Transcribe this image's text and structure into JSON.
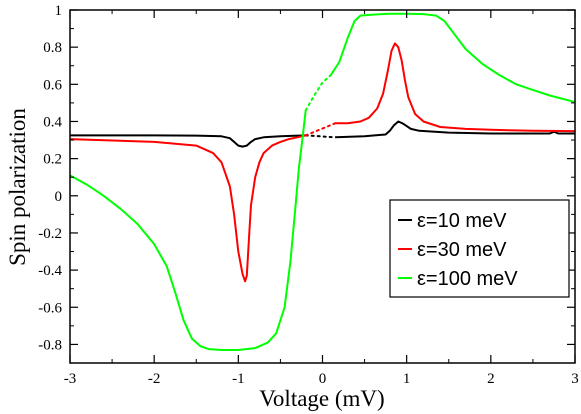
{
  "chart_data": {
    "type": "line",
    "title": "",
    "xlabel": "Voltage (mV)",
    "ylabel": "Spin polarization",
    "xlim": [
      -3,
      3
    ],
    "ylim": [
      -0.9,
      1.0
    ],
    "x_ticks": [
      "-3",
      "-2",
      "-1",
      "0",
      "1",
      "2",
      "3"
    ],
    "y_ticks": [
      "1",
      "0.8",
      "0.6",
      "0.4",
      "0.2",
      "0",
      "-0.2",
      "-0.4",
      "-0.6",
      "-0.8"
    ],
    "grid": false,
    "legend_position": "bottom-right",
    "series": [
      {
        "name": "ε=10 meV",
        "color": "#000000",
        "x": [
          -3,
          -2,
          -1.5,
          -1.2,
          -1.1,
          -1.05,
          -1.0,
          -0.95,
          -0.9,
          -0.85,
          -0.8,
          -0.7,
          -0.5,
          -0.2
        ],
        "y": [
          0.325,
          0.325,
          0.324,
          0.32,
          0.31,
          0.29,
          0.27,
          0.265,
          0.27,
          0.29,
          0.305,
          0.315,
          0.32,
          0.325
        ],
        "x2": [
          0.15,
          0.5,
          0.75,
          0.8,
          0.85,
          0.9,
          0.95,
          1.0,
          1.05,
          1.15,
          1.5,
          2.0,
          2.7,
          2.75,
          2.8,
          3.0
        ],
        "y2": [
          0.315,
          0.32,
          0.33,
          0.35,
          0.38,
          0.4,
          0.39,
          0.375,
          0.36,
          0.35,
          0.34,
          0.335,
          0.335,
          0.345,
          0.335,
          0.335
        ]
      },
      {
        "name": "ε=30 meV",
        "color": "#ff0000",
        "x": [
          -3,
          -2.0,
          -1.5,
          -1.3,
          -1.2,
          -1.1,
          -1.05,
          -1.0,
          -0.95,
          -0.92,
          -0.9,
          -0.87,
          -0.85,
          -0.8,
          -0.75,
          -0.7,
          -0.6,
          -0.5,
          -0.4,
          -0.3,
          -0.2
        ],
        "y": [
          0.305,
          0.29,
          0.27,
          0.23,
          0.18,
          0.05,
          -0.1,
          -0.3,
          -0.42,
          -0.46,
          -0.43,
          -0.2,
          -0.05,
          0.1,
          0.18,
          0.23,
          0.27,
          0.29,
          0.305,
          0.315,
          0.325
        ],
        "x2": [
          0.15,
          0.3,
          0.45,
          0.55,
          0.65,
          0.72,
          0.78,
          0.82,
          0.86,
          0.9,
          0.94,
          0.98,
          1.02,
          1.1,
          1.2,
          1.4,
          1.7,
          2.0,
          2.5,
          3.0
        ],
        "y2": [
          0.39,
          0.39,
          0.4,
          0.42,
          0.47,
          0.55,
          0.68,
          0.78,
          0.82,
          0.8,
          0.73,
          0.62,
          0.53,
          0.44,
          0.4,
          0.37,
          0.36,
          0.355,
          0.35,
          0.348
        ]
      },
      {
        "name": "ε=100 meV",
        "color": "#00ff00",
        "x": [
          -3,
          -2.8,
          -2.6,
          -2.4,
          -2.2,
          -2.0,
          -1.85,
          -1.75,
          -1.65,
          -1.55,
          -1.45,
          -1.35,
          -1.2,
          -1.0,
          -0.8,
          -0.65,
          -0.55,
          -0.45,
          -0.38,
          -0.32,
          -0.28,
          -0.24,
          -0.2
        ],
        "y": [
          0.11,
          0.06,
          0.0,
          -0.07,
          -0.15,
          -0.26,
          -0.38,
          -0.52,
          -0.67,
          -0.77,
          -0.81,
          -0.825,
          -0.83,
          -0.83,
          -0.82,
          -0.79,
          -0.74,
          -0.6,
          -0.35,
          -0.05,
          0.15,
          0.3,
          0.46
        ],
        "x2": [
          0.1,
          0.2,
          0.3,
          0.38,
          0.45,
          0.6,
          0.8,
          1.0,
          1.2,
          1.35,
          1.45,
          1.55,
          1.7,
          1.9,
          2.1,
          2.3,
          2.5,
          2.7,
          3.0
        ],
        "y2": [
          0.65,
          0.72,
          0.85,
          0.94,
          0.97,
          0.975,
          0.98,
          0.98,
          0.978,
          0.97,
          0.94,
          0.88,
          0.79,
          0.71,
          0.65,
          0.6,
          0.57,
          0.54,
          0.505
        ]
      }
    ],
    "gap_links": [
      {
        "color": "#000000",
        "x": [
          -0.2,
          0.15
        ],
        "y": [
          0.325,
          0.315
        ]
      },
      {
        "color": "#ff0000",
        "x": [
          -0.2,
          0.15
        ],
        "y": [
          0.325,
          0.39
        ]
      },
      {
        "color": "#00ff00",
        "x": [
          -0.2,
          -0.1,
          0.0,
          0.1
        ],
        "y": [
          0.46,
          0.54,
          0.61,
          0.65
        ]
      }
    ]
  }
}
